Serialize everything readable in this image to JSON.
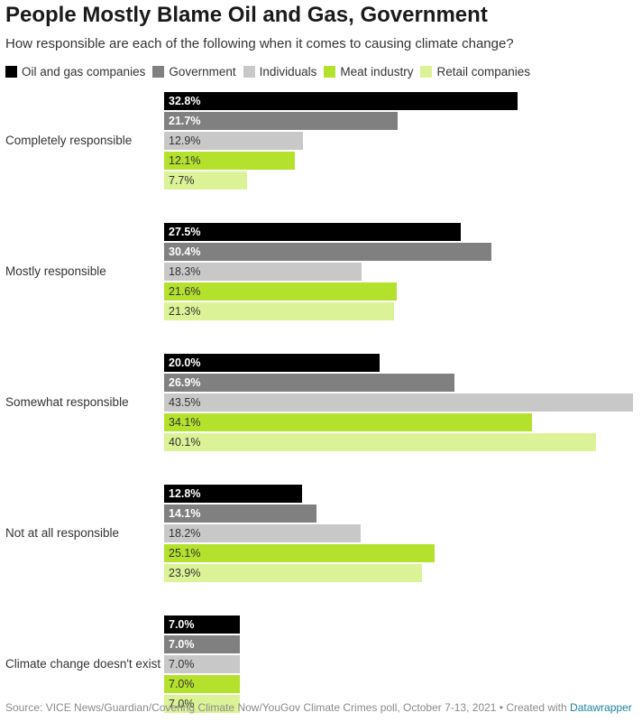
{
  "header": {
    "title": "People Mostly Blame Oil and Gas, Government",
    "subtitle": "How responsible are each of the following when it comes to causing climate change?"
  },
  "footer": {
    "source": "Source: VICE News/Guardian/Covering Climate Now/YouGov Climate Crimes poll, October 7-13, 2021 • Created with ",
    "link": "Datawrapper"
  },
  "chart_data": {
    "type": "bar",
    "orientation": "horizontal",
    "title": "People Mostly Blame Oil and Gas, Government",
    "subtitle": "How responsible are each of the following when it comes to causing climate change?",
    "categories": [
      "Completely responsible",
      "Mostly responsible",
      "Somewhat responsible",
      "Not at all responsible",
      "Climate change doesn't exist"
    ],
    "series": [
      {
        "name": "Oil and gas companies",
        "color": "#000000",
        "label_color": "#ffffff",
        "values": [
          32.8,
          27.5,
          20.0,
          12.8,
          7.0
        ],
        "labels": [
          "32.8%",
          "27.5%",
          "20.0%",
          "12.8%",
          "7.0%"
        ]
      },
      {
        "name": "Government",
        "color": "#808080",
        "label_color": "#ffffff",
        "values": [
          21.7,
          30.4,
          26.9,
          14.1,
          7.0
        ],
        "labels": [
          "21.7%",
          "30.4%",
          "26.9%",
          "14.1%",
          "7.0%"
        ]
      },
      {
        "name": "Individuals",
        "color": "#c8c8c8",
        "label_color": "#333333",
        "values": [
          12.9,
          18.3,
          43.5,
          18.2,
          7.0
        ],
        "labels": [
          "12.9%",
          "18.3%",
          "43.5%",
          "18.2%",
          "7.0%"
        ]
      },
      {
        "name": "Meat industry",
        "color": "#b4e12c",
        "label_color": "#333333",
        "values": [
          12.1,
          21.6,
          34.1,
          25.1,
          7.0
        ],
        "labels": [
          "12.1%",
          "21.6%",
          "34.1%",
          "25.1%",
          "7.0%"
        ]
      },
      {
        "name": "Retail companies",
        "color": "#dcf296",
        "label_color": "#333333",
        "values": [
          7.7,
          21.3,
          40.1,
          23.9,
          7.0
        ],
        "labels": [
          "7.7%",
          "21.3%",
          "40.1%",
          "23.9%",
          "7.0%"
        ]
      }
    ],
    "xlim": [
      0,
      43.5
    ],
    "unit": "%",
    "grid": false,
    "legend_position": "top"
  }
}
